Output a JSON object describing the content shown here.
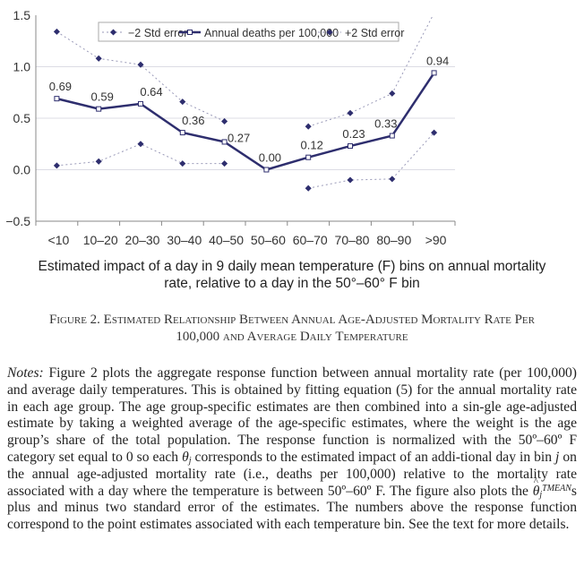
{
  "chart_data": {
    "type": "line",
    "title": "",
    "xlabel": "Estimated impact of a day in 9 daily mean temperature (F) bins on annual mortality rate, relative to a day in the 50°–60° F bin",
    "ylabel": "",
    "ylim": [
      -0.5,
      1.5
    ],
    "yticks": [
      "1.5",
      "1.0",
      "0.5",
      "0.0",
      "−0.5"
    ],
    "ytick_values": [
      1.5,
      1.0,
      0.5,
      0.0,
      -0.5
    ],
    "grid": "horizontal",
    "legend_position": "top",
    "categories": [
      "<10",
      "10–20",
      "20–30",
      "30–40",
      "40–50",
      "50–60",
      "60–70",
      "70–80",
      "80–90",
      ">90"
    ],
    "series": [
      {
        "name": "−2 Std error",
        "style": "dotted-diamond",
        "color": "#9a9ab8",
        "marker_color": "#2e2e6e",
        "values": [
          0.04,
          0.08,
          0.25,
          0.06,
          0.06,
          null,
          -0.18,
          -0.1,
          -0.09,
          0.36
        ]
      },
      {
        "name": "Annual deaths per 100,000",
        "style": "solid-square",
        "color": "#2e2e6e",
        "values": [
          0.69,
          0.59,
          0.64,
          0.36,
          0.27,
          0.0,
          0.12,
          0.23,
          0.33,
          0.94
        ],
        "labels": [
          "0.69",
          "0.59",
          "0.64",
          "0.36",
          "0.27",
          "0.00",
          "0.12",
          "0.23",
          "0.33",
          "0.94"
        ]
      },
      {
        "name": "+2 Std error",
        "style": "dotted-diamond",
        "color": "#9a9ab8",
        "marker_color": "#2e2e6e",
        "values": [
          1.34,
          1.08,
          1.02,
          0.66,
          0.47,
          null,
          0.42,
          0.55,
          0.74,
          1.52
        ]
      }
    ]
  },
  "xlabel_lines": [
    "Estimated impact of a day in 9 daily mean temperature (F) bins on annual mortality",
    "rate, relative to a day in the 50°–60° F bin"
  ],
  "caption": {
    "line1": "Figure 2. Estimated Relationship Between Annual Age-Adjusted Mortality Rate Per",
    "line2": "100,000 and Average Daily Temperature"
  },
  "notes": {
    "label": "Notes:",
    "part1": " Figure 2 plots the aggregate response function between annual mortality rate (per 100,000) and average daily temperatures. This is obtained by fitting equation (5) for the annual mortality rate in each age group. The age group-specific estimates are then combined into a sin-gle age-adjusted estimate by taking a weighted average of the age-specific estimates, where the weight is the age group’s share of the total population. The response function is normalized with the 50º–60º F category set equal to 0 so each ",
    "theta": "θ",
    "theta_sub": "j",
    "part2": " corresponds to the estimated impact of an addi-tional day in bin ",
    "bin_j": "j",
    "part3": " on the annual age-adjusted mortality rate (i.e., deaths per 100,000) relative to the mortality rate associated with a day where the temperature is between 50º–60º F. The figure also plots the ",
    "theta_hat": "θ",
    "hat_accent": "^",
    "theta_hat_sub": "j",
    "theta_hat_sup": "TMEAN",
    "part4": "s plus and minus two standard error of the estimates. The numbers above the response function correspond to the point estimates associated with each temperature bin. See the text for more details."
  }
}
